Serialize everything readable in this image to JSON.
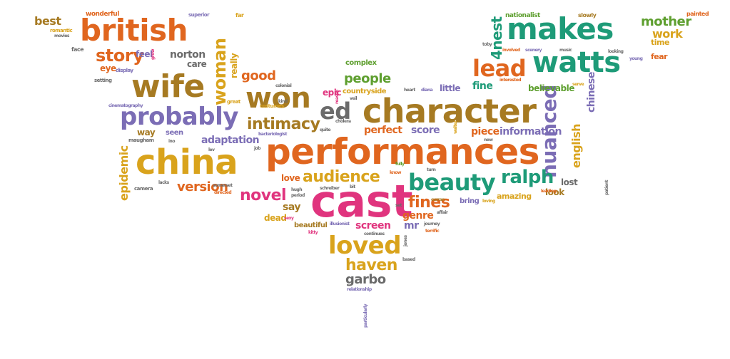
{
  "colors": {
    "orange": "#E0661F",
    "brown": "#A67A22",
    "teal": "#1E9B78",
    "purple": "#7B6DB5",
    "mustard": "#D9A31C",
    "pink": "#E0347E",
    "green": "#5E9F2F",
    "gray": "#6B6B6B"
  },
  "words": [
    {
      "id": "cast",
      "text": "cast",
      "color": "pink"
    },
    {
      "id": "performances",
      "text": "performances",
      "color": "orange"
    },
    {
      "id": "character",
      "text": "character",
      "color": "brown"
    },
    {
      "id": "china",
      "text": "china",
      "color": "mustard"
    },
    {
      "id": "british",
      "text": "british",
      "color": "orange"
    },
    {
      "id": "makes",
      "text": "makes",
      "color": "teal"
    },
    {
      "id": "watts",
      "text": "watts",
      "color": "teal"
    },
    {
      "id": "wife",
      "text": "wife",
      "color": "brown"
    },
    {
      "id": "probably",
      "text": "probably",
      "color": "purple"
    },
    {
      "id": "won",
      "text": "won",
      "color": "brown"
    },
    {
      "id": "ed",
      "text": "ed",
      "color": "gray"
    },
    {
      "id": "lead",
      "text": "lead",
      "color": "orange"
    },
    {
      "id": "woman",
      "text": "woman",
      "color": "mustard"
    },
    {
      "id": "loved",
      "text": "loved",
      "color": "mustard"
    },
    {
      "id": "beauty",
      "text": "beauty",
      "color": "teal"
    },
    {
      "id": "nuanced",
      "text": "nuanced",
      "color": "purple"
    },
    {
      "id": "intimacy",
      "text": "intimacy",
      "color": "brown"
    },
    {
      "id": "audience",
      "text": "audience",
      "color": "mustard"
    },
    {
      "id": "ralph",
      "text": "ralph",
      "color": "teal"
    },
    {
      "id": "story",
      "text": "story",
      "color": "orange"
    },
    {
      "id": "haven",
      "text": "haven",
      "color": "mustard"
    },
    {
      "id": "fines",
      "text": "fines",
      "color": "orange"
    },
    {
      "id": "4nest",
      "text": "4nest",
      "color": "teal"
    },
    {
      "id": "novel",
      "text": "novel",
      "color": "pink"
    },
    {
      "id": "version",
      "text": "version",
      "color": "orange"
    },
    {
      "id": "people",
      "text": "people",
      "color": "green"
    },
    {
      "id": "good",
      "text": "good",
      "color": "orange"
    },
    {
      "id": "mother",
      "text": "mother",
      "color": "green"
    },
    {
      "id": "work",
      "text": "work",
      "color": "mustard"
    },
    {
      "id": "epidemic",
      "text": "epidemic",
      "color": "mustard"
    },
    {
      "id": "garbo",
      "text": "garbo",
      "color": "gray"
    },
    {
      "id": "english",
      "text": "english",
      "color": "mustard"
    },
    {
      "id": "chinese",
      "text": "chinese",
      "color": "purple"
    },
    {
      "id": "adaptation",
      "text": "adaptation",
      "color": "purple"
    },
    {
      "id": "information",
      "text": "information",
      "color": "purple"
    },
    {
      "id": "piece",
      "text": "piece",
      "color": "orange"
    },
    {
      "id": "score",
      "text": "score",
      "color": "purple"
    },
    {
      "id": "perfect",
      "text": "perfect",
      "color": "orange"
    },
    {
      "id": "screen",
      "text": "screen",
      "color": "pink"
    },
    {
      "id": "genre",
      "text": "genre",
      "color": "orange"
    },
    {
      "id": "mr",
      "text": "mr",
      "color": "purple"
    },
    {
      "id": "say",
      "text": "say",
      "color": "brown"
    },
    {
      "id": "dead",
      "text": "dead",
      "color": "mustard"
    },
    {
      "id": "love",
      "text": "love",
      "color": "orange"
    },
    {
      "id": "fine",
      "text": "fine",
      "color": "teal"
    },
    {
      "id": "little",
      "text": "little",
      "color": "purple"
    },
    {
      "id": "believable",
      "text": "believable",
      "color": "green"
    },
    {
      "id": "look",
      "text": "look",
      "color": "brown"
    },
    {
      "id": "lost",
      "text": "lost",
      "color": "gray"
    },
    {
      "id": "amazing",
      "text": "amazing",
      "color": "mustard"
    },
    {
      "id": "bring",
      "text": "bring",
      "color": "purple"
    },
    {
      "id": "norton",
      "text": "norton",
      "color": "gray"
    },
    {
      "id": "care",
      "text": "care",
      "color": "gray"
    },
    {
      "id": "feel",
      "text": "feel",
      "color": "purple"
    },
    {
      "id": "eye",
      "text": "eye",
      "color": "orange"
    },
    {
      "id": "best",
      "text": "best",
      "color": "brown"
    },
    {
      "id": "really",
      "text": "really",
      "color": "mustard"
    },
    {
      "id": "way",
      "text": "way",
      "color": "brown"
    },
    {
      "id": "seen",
      "text": "seen",
      "color": "purple"
    },
    {
      "id": "epic",
      "text": "epic",
      "color": "pink"
    },
    {
      "id": "countryside",
      "text": "countryside",
      "color": "mustard"
    },
    {
      "id": "complex",
      "text": "complex",
      "color": "green"
    },
    {
      "id": "fear",
      "text": "fear",
      "color": "orange"
    },
    {
      "id": "time",
      "text": "time",
      "color": "mustard"
    },
    {
      "id": "beautiful",
      "text": "beautiful",
      "color": "brown"
    },
    {
      "id": "wonderful",
      "text": "wonderful",
      "color": "orange"
    },
    {
      "id": "nationalist",
      "text": "nationalist",
      "color": "green"
    },
    {
      "id": "painted",
      "text": "painted",
      "color": "orange"
    },
    {
      "id": "slowly",
      "text": "slowly",
      "color": "brown"
    },
    {
      "id": "superior",
      "text": "superior",
      "color": "purple"
    },
    {
      "id": "far",
      "text": "far",
      "color": "mustard"
    },
    {
      "id": "romantic",
      "text": "romantic",
      "color": "mustard"
    },
    {
      "id": "movies",
      "text": "movies",
      "color": "gray"
    },
    {
      "id": "face",
      "text": "face",
      "color": "gray"
    },
    {
      "id": "display",
      "text": "display",
      "color": "purple"
    },
    {
      "id": "setting",
      "text": "setting",
      "color": "gray"
    },
    {
      "id": "cinematography",
      "text": "cinematography",
      "color": "purple"
    },
    {
      "id": "maugham",
      "text": "maugham",
      "color": "gray"
    },
    {
      "id": "camera",
      "text": "camera",
      "color": "gray"
    },
    {
      "id": "lacks",
      "text": "lacks",
      "color": "gray"
    },
    {
      "id": "ino",
      "text": "ino",
      "color": "gray"
    },
    {
      "id": "bacteriologist",
      "text": "bacteriologist",
      "color": "purple"
    },
    {
      "id": "colonial",
      "text": "colonial",
      "color": "gray"
    },
    {
      "id": "costumes",
      "text": "costumes",
      "color": "mustard"
    },
    {
      "id": "great",
      "text": "great",
      "color": "mustard"
    },
    {
      "id": "kind",
      "text": "kind",
      "color": "gray"
    },
    {
      "id": "veil",
      "text": "veil",
      "color": "gray"
    },
    {
      "id": "reason",
      "text": "reason",
      "color": "pink"
    },
    {
      "id": "cholera",
      "text": "cholera",
      "color": "gray"
    },
    {
      "id": "quite",
      "text": "quite",
      "color": "gray"
    },
    {
      "id": "job",
      "text": "job",
      "color": "gray"
    },
    {
      "id": "lev",
      "text": "lev",
      "color": "gray"
    },
    {
      "id": "heart",
      "text": "heart",
      "color": "gray"
    },
    {
      "id": "diana",
      "text": "diana",
      "color": "purple"
    },
    {
      "id": "interested",
      "text": "interested",
      "color": "orange"
    },
    {
      "id": "involved",
      "text": "involved",
      "color": "orange"
    },
    {
      "id": "scenery",
      "text": "scenery",
      "color": "purple"
    },
    {
      "id": "music",
      "text": "music",
      "color": "gray"
    },
    {
      "id": "looking",
      "text": "looking",
      "color": "gray"
    },
    {
      "id": "young",
      "text": "young",
      "color": "purple"
    },
    {
      "id": "toby",
      "text": "toby",
      "color": "gray"
    },
    {
      "id": "serve",
      "text": "serve",
      "color": "mustard"
    },
    {
      "id": "walter",
      "text": "walter",
      "color": "mustard"
    },
    {
      "id": "new",
      "text": "new",
      "color": "gray"
    },
    {
      "id": "leading",
      "text": "leading",
      "color": "orange"
    },
    {
      "id": "patient",
      "text": "patient",
      "color": "gray"
    },
    {
      "id": "turn",
      "text": "turn",
      "color": "gray"
    },
    {
      "id": "know",
      "text": "know",
      "color": "orange"
    },
    {
      "id": "fully",
      "text": "fully",
      "color": "green"
    },
    {
      "id": "bit",
      "text": "bit",
      "color": "gray"
    },
    {
      "id": "schreiber",
      "text": "schreiber",
      "color": "gray"
    },
    {
      "id": "directed",
      "text": "directed",
      "color": "orange"
    },
    {
      "id": "sexy",
      "text": "sexy",
      "color": "pink"
    },
    {
      "id": "period",
      "text": "period",
      "color": "gray"
    },
    {
      "id": "hugh",
      "text": "hugh",
      "color": "gray"
    },
    {
      "id": "somerset",
      "text": "somerset",
      "color": "gray"
    },
    {
      "id": "set",
      "text": "set",
      "color": "gray"
    },
    {
      "id": "curran",
      "text": "curran",
      "color": "brown"
    },
    {
      "id": "affair",
      "text": "affair",
      "color": "gray"
    },
    {
      "id": "loving",
      "text": "loving",
      "color": "mustard"
    },
    {
      "id": "terrific",
      "text": "terrific",
      "color": "orange"
    },
    {
      "id": "journey",
      "text": "journey",
      "color": "gray"
    },
    {
      "id": "illusionist",
      "text": "illusionist",
      "color": "purple"
    },
    {
      "id": "continues",
      "text": "continues",
      "color": "gray"
    },
    {
      "id": "kitty",
      "text": "kitty",
      "color": "pink"
    },
    {
      "id": "jones",
      "text": "jones",
      "color": "gray"
    },
    {
      "id": "based",
      "text": "based",
      "color": "gray"
    },
    {
      "id": "relationship",
      "text": "relationship",
      "color": "purple"
    },
    {
      "id": "particularly",
      "text": "particularly",
      "color": "purple"
    },
    {
      "id": "grow",
      "text": "grow",
      "color": "pink"
    }
  ]
}
